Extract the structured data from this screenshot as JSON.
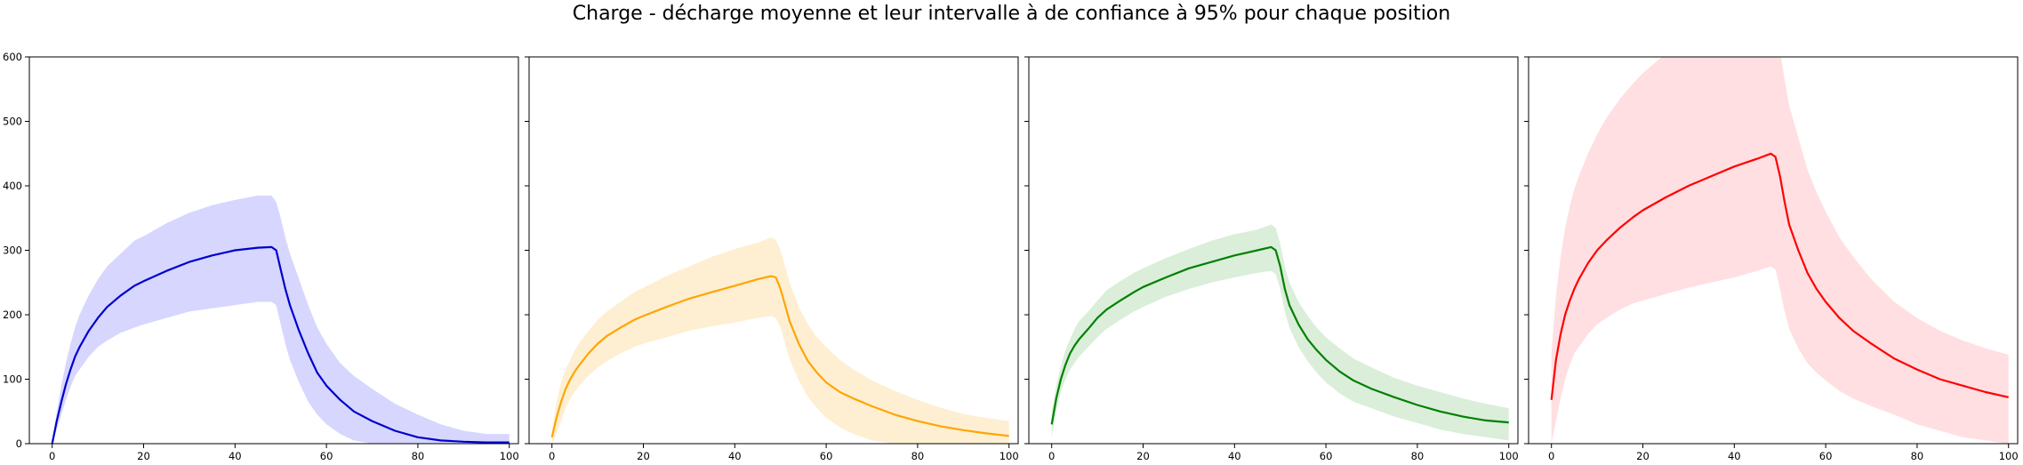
{
  "chart_data": {
    "title": "Charge - décharge moyenne et leur intervalle à de confiance à 95% pour chaque position",
    "type": "line",
    "shared_y": true,
    "xlim": [
      -5,
      102
    ],
    "ylim": [
      0,
      600
    ],
    "x_ticks": [
      0,
      20,
      40,
      60,
      80,
      100
    ],
    "y_ticks": [
      0,
      100,
      200,
      300,
      400,
      500,
      600
    ],
    "grid": false,
    "subplots": [
      {
        "color": "#0000cd",
        "band_color": "#c8c8ff",
        "x": [
          0,
          1,
          2,
          3,
          4,
          5,
          6,
          8,
          10,
          12,
          15,
          18,
          20,
          25,
          30,
          35,
          40,
          45,
          48,
          49,
          50,
          51,
          52,
          54,
          56,
          58,
          60,
          63,
          66,
          70,
          75,
          80,
          85,
          90,
          95,
          100
        ],
        "mean": [
          0,
          35,
          65,
          92,
          115,
          135,
          150,
          175,
          195,
          212,
          230,
          245,
          252,
          268,
          282,
          292,
          300,
          304,
          305,
          300,
          270,
          240,
          215,
          175,
          140,
          110,
          90,
          68,
          50,
          35,
          20,
          10,
          5,
          3,
          2,
          2
        ],
        "lower": [
          0,
          22,
          45,
          68,
          88,
          105,
          115,
          135,
          150,
          160,
          172,
          180,
          185,
          195,
          205,
          210,
          215,
          220,
          220,
          215,
          185,
          155,
          130,
          95,
          65,
          45,
          30,
          15,
          5,
          0,
          0,
          0,
          0,
          0,
          0,
          0
        ],
        "upper": [
          0,
          50,
          90,
          125,
          155,
          180,
          200,
          230,
          255,
          275,
          295,
          315,
          322,
          342,
          358,
          370,
          378,
          385,
          385,
          375,
          350,
          320,
          295,
          255,
          215,
          180,
          155,
          125,
          105,
          85,
          62,
          45,
          30,
          20,
          15,
          15
        ]
      },
      {
        "color": "#ffa500",
        "band_color": "#fde9c4",
        "x": [
          0,
          1,
          2,
          3,
          4,
          5,
          6,
          8,
          10,
          12,
          15,
          18,
          20,
          25,
          30,
          35,
          40,
          45,
          48,
          49,
          50,
          51,
          52,
          54,
          56,
          58,
          60,
          63,
          66,
          70,
          75,
          80,
          85,
          90,
          95,
          100
        ],
        "mean": [
          10,
          40,
          65,
          85,
          100,
          112,
          122,
          140,
          155,
          167,
          180,
          192,
          198,
          212,
          225,
          235,
          245,
          255,
          260,
          258,
          240,
          215,
          190,
          155,
          128,
          110,
          95,
          80,
          70,
          58,
          45,
          35,
          27,
          21,
          16,
          12
        ],
        "lower": [
          0,
          15,
          35,
          55,
          70,
          80,
          90,
          105,
          118,
          128,
          140,
          150,
          155,
          165,
          175,
          182,
          188,
          195,
          198,
          195,
          180,
          155,
          130,
          98,
          72,
          55,
          40,
          25,
          15,
          5,
          0,
          0,
          0,
          0,
          0,
          0
        ],
        "upper": [
          20,
          65,
          95,
          115,
          130,
          145,
          157,
          175,
          192,
          205,
          220,
          235,
          242,
          260,
          275,
          290,
          302,
          312,
          320,
          316,
          300,
          275,
          250,
          212,
          185,
          165,
          150,
          130,
          115,
          98,
          82,
          68,
          56,
          46,
          40,
          35
        ]
      },
      {
        "color": "#008000",
        "band_color": "#cde8cd",
        "x": [
          0,
          1,
          2,
          3,
          4,
          5,
          6,
          8,
          10,
          12,
          15,
          18,
          20,
          25,
          30,
          35,
          40,
          45,
          48,
          49,
          50,
          51,
          52,
          54,
          56,
          58,
          60,
          63,
          66,
          70,
          75,
          80,
          85,
          90,
          95,
          100
        ],
        "mean": [
          30,
          70,
          100,
          122,
          140,
          152,
          162,
          178,
          195,
          208,
          222,
          235,
          243,
          258,
          272,
          282,
          292,
          300,
          305,
          300,
          275,
          240,
          215,
          185,
          162,
          145,
          130,
          112,
          98,
          85,
          72,
          60,
          50,
          42,
          36,
          33
        ],
        "lower": [
          10,
          50,
          80,
          100,
          115,
          125,
          135,
          150,
          165,
          178,
          192,
          205,
          212,
          228,
          240,
          250,
          258,
          265,
          268,
          263,
          240,
          205,
          180,
          150,
          128,
          110,
          95,
          78,
          65,
          55,
          42,
          32,
          22,
          15,
          10,
          5
        ],
        "upper": [
          50,
          90,
          120,
          145,
          162,
          178,
          190,
          205,
          222,
          238,
          252,
          265,
          272,
          288,
          302,
          315,
          325,
          332,
          340,
          335,
          310,
          275,
          250,
          220,
          198,
          180,
          165,
          148,
          132,
          118,
          102,
          90,
          80,
          70,
          62,
          55
        ]
      },
      {
        "color": "#ff0000",
        "band_color": "#ffd4d8",
        "x": [
          0,
          1,
          2,
          3,
          4,
          5,
          6,
          8,
          10,
          12,
          15,
          18,
          20,
          25,
          30,
          35,
          40,
          45,
          48,
          49,
          50,
          51,
          52,
          54,
          56,
          58,
          60,
          63,
          66,
          70,
          75,
          80,
          85,
          90,
          95,
          100
        ],
        "mean": [
          68,
          130,
          170,
          200,
          222,
          240,
          255,
          280,
          300,
          315,
          335,
          352,
          362,
          382,
          400,
          415,
          430,
          442,
          450,
          445,
          415,
          375,
          340,
          300,
          265,
          240,
          220,
          195,
          175,
          155,
          132,
          115,
          100,
          90,
          80,
          72
        ],
        "lower": [
          0,
          35,
          70,
          100,
          122,
          140,
          150,
          170,
          185,
          195,
          208,
          218,
          222,
          232,
          242,
          250,
          258,
          268,
          275,
          270,
          240,
          205,
          178,
          148,
          125,
          110,
          98,
          82,
          70,
          58,
          45,
          30,
          20,
          10,
          5,
          0
        ],
        "upper": [
          140,
          230,
          290,
          335,
          368,
          395,
          415,
          450,
          480,
          505,
          535,
          560,
          575,
          605,
          630,
          650,
          660,
          665,
          670,
          655,
          610,
          565,
          525,
          475,
          425,
          390,
          360,
          320,
          290,
          255,
          220,
          195,
          175,
          160,
          148,
          138
        ]
      }
    ]
  }
}
